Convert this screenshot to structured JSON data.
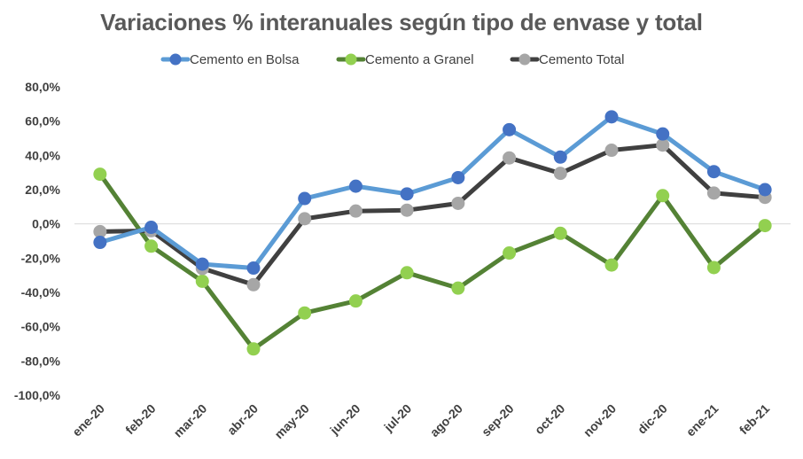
{
  "chart_data": {
    "type": "line",
    "title": "Variaciones % interanuales según tipo de envase y total",
    "xlabel": "",
    "ylabel": "",
    "categories": [
      "ene-20",
      "feb-20",
      "mar-20",
      "abr-20",
      "may-20",
      "jun-20",
      "jul-20",
      "ago-20",
      "sep-20",
      "oct-20",
      "nov-20",
      "dic-20",
      "ene-21",
      "feb-21"
    ],
    "ylim": [
      -100,
      80
    ],
    "yticks": [
      80,
      60,
      40,
      20,
      0,
      -20,
      -40,
      -60,
      -80,
      -100
    ],
    "ytick_labels": [
      "80,0%",
      "60,0%",
      "40,0%",
      "20,0%",
      "0,0%",
      "-20,0%",
      "-40,0%",
      "-60,0%",
      "-80,0%",
      "-100,0%"
    ],
    "legend_position": "top-center",
    "grid": "zero-line-only",
    "series": [
      {
        "name": "Cemento en Bolsa",
        "line_color": "#5B9BD5",
        "marker_color": "#4472C4",
        "values": [
          -10.8,
          -2.0,
          -23.5,
          -25.8,
          14.8,
          22.0,
          17.5,
          27.0,
          55.0,
          39.0,
          62.5,
          52.5,
          30.5,
          20.0
        ]
      },
      {
        "name": "Cemento a Granel",
        "line_color": "#548235",
        "marker_color": "#92D050",
        "values": [
          29.0,
          -13.0,
          -33.5,
          -73.0,
          -52.0,
          -45.0,
          -28.5,
          -37.5,
          -17.0,
          -5.5,
          -24.0,
          16.5,
          -25.5,
          -1.0
        ]
      },
      {
        "name": "Cemento Total",
        "line_color": "#404040",
        "marker_color": "#A6A6A6",
        "values": [
          -4.5,
          -4.0,
          -26.0,
          -35.5,
          3.0,
          7.5,
          8.0,
          12.0,
          38.5,
          29.5,
          43.0,
          46.0,
          18.0,
          15.5
        ]
      }
    ]
  }
}
